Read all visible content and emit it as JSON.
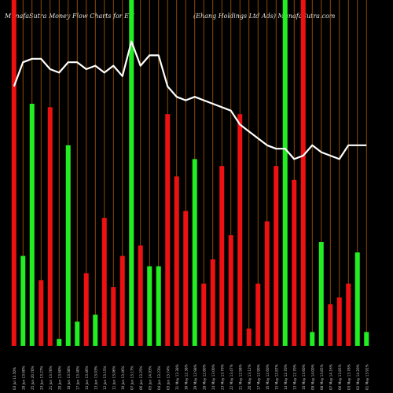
{
  "header": {
    "left": "MunafaSutra  Money Flow  Charts for EH",
    "right": "(Ehang Holdings Ltd Ads) MunafaSutra.com"
  },
  "colors": {
    "background": "#000000",
    "up": "#22ee22",
    "down": "#ee1111",
    "gridline": "#b05a00",
    "line": "#ffffff",
    "label": "#cccccc"
  },
  "chart_data": {
    "type": "bar",
    "title": "MunafaSutra  Money Flow  Charts for EH",
    "subtitle": "(Ehang Holdings Ltd Ads) MunafaSutra.com",
    "xlabel": "",
    "ylabel": "",
    "ylim": [
      0,
      100
    ],
    "grid": true,
    "legend": "none",
    "categories": [
      "03 Jul 13.50%",
      "28 Jun 13.60%",
      "25 Jun 20.70%",
      "24 Jun 13.27%",
      "21 Jun 13.70%",
      "20 Jun 13.60%",
      "18 Jun 13.58%",
      "17 Jun 13.40%",
      "14 Jun 13.46%",
      "13 Jun 13.03%",
      "12 Jun 13.15%",
      "11 Jun 13.06%",
      "10 Jun 13.46%",
      "07 Jun 13.17%",
      "06 Jun 13.25%",
      "05 Jun 14.93%",
      "04 Jun 13.23%",
      "03 Jun 13.74%",
      "31 May 13.38%",
      "30 May 12.38%",
      "29 May 12.98%",
      "28 May 12.80%",
      "24 May 13.00%",
      "23 May 13.79%",
      "22 May 13.47%",
      "21 May 12.98%",
      "20 May 13.12%",
      "17 May 12.90%",
      "16 May 12.60%",
      "15 May 12.87%",
      "14 May 12.70%",
      "13 May 12.70%",
      "10 May 13.60%",
      "09 May 14.00%",
      "08 May 13.85%",
      "07 May 14.16%",
      "06 May 13.85%",
      "03 May 13.78%",
      "02 May 14.20%",
      "01 May 13.91%"
    ],
    "series": [
      {
        "type": "bar",
        "values": [
          100,
          26,
          70,
          19,
          69,
          2,
          58,
          7,
          21,
          9,
          37,
          17,
          26,
          100,
          29,
          23,
          23,
          67,
          49,
          39,
          54,
          18,
          25,
          52,
          32,
          67,
          5,
          18,
          36,
          52,
          100,
          48,
          100,
          4,
          30,
          12,
          14,
          18,
          27,
          4
        ],
        "direction": [
          "down",
          "up",
          "up",
          "down",
          "down",
          "up",
          "up",
          "up",
          "down",
          "up",
          "down",
          "down",
          "down",
          "up",
          "down",
          "up",
          "up",
          "down",
          "down",
          "down",
          "up",
          "down",
          "down",
          "down",
          "down",
          "down",
          "down",
          "down",
          "down",
          "down",
          "up",
          "down",
          "down",
          "up",
          "up",
          "down",
          "down",
          "down",
          "up",
          "up"
        ]
      },
      {
        "type": "line",
        "values": [
          75,
          82,
          83,
          83,
          80,
          79,
          82,
          82,
          80,
          81,
          79,
          81,
          78,
          88,
          81,
          84,
          84,
          75,
          72,
          71,
          72,
          71,
          70,
          69,
          68,
          64,
          62,
          60,
          58,
          57,
          57,
          54,
          55,
          58,
          56,
          55,
          54,
          58,
          58,
          58
        ]
      }
    ]
  }
}
